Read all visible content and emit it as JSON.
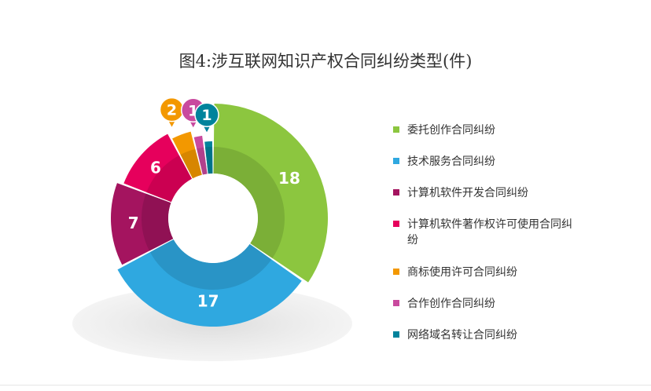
{
  "chart_data": {
    "type": "pie",
    "title": "图4:涉互联网知识产权合同纠纷类型(件)",
    "legend_position": "right",
    "series": [
      {
        "name": "委托创作合同纠纷",
        "value": 18,
        "color": "#8cc63f"
      },
      {
        "name": "技术服务合同纠纷",
        "value": 17,
        "color": "#2fa8e0"
      },
      {
        "name": "计算机软件开发合同纠纷",
        "value": 7,
        "color": "#a4145f"
      },
      {
        "name": "计算机软件著作权许可使用合同纠纷",
        "value": 6,
        "color": "#e6005c"
      },
      {
        "name": "商标使用许可合同纠纷",
        "value": 2,
        "color": "#f39800"
      },
      {
        "name": "合作创作合同纠纷",
        "value": 1,
        "color": "#c94a9e"
      },
      {
        "name": "网络域名转让合同纠纷",
        "value": 1,
        "color": "#00839c"
      }
    ]
  }
}
